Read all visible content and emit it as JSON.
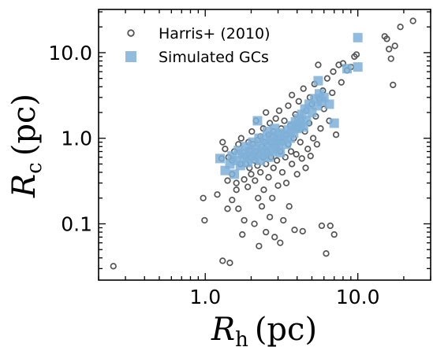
{
  "chart_data": {
    "type": "scatter",
    "x_scale": "log",
    "y_scale": "log",
    "xlim": [
      0.2,
      30
    ],
    "ylim": [
      0.022,
      32
    ],
    "xlabel": {
      "main": "R",
      "sub": "h",
      "unit": "(pc)"
    },
    "ylabel": {
      "main": "R",
      "sub": "c",
      "unit": "(pc)"
    },
    "x_ticks": [
      {
        "value": 1,
        "label": "1.0"
      },
      {
        "value": 10,
        "label": "10.0"
      }
    ],
    "y_ticks": [
      {
        "value": 0.1,
        "label": "0.1"
      },
      {
        "value": 1,
        "label": "1.0"
      },
      {
        "value": 10,
        "label": "10.0"
      }
    ],
    "legend": {
      "position": "top-left"
    },
    "series": [
      {
        "name": "Harris+ (2010)",
        "marker": "open-circle",
        "color": "#555555",
        "points": [
          [
            0.25,
            0.032
          ],
          [
            0.97,
            0.2
          ],
          [
            0.99,
            0.11
          ],
          [
            1.2,
            0.22
          ],
          [
            1.28,
            0.58
          ],
          [
            1.3,
            0.037
          ],
          [
            1.3,
            0.9
          ],
          [
            1.35,
            0.75
          ],
          [
            1.4,
            0.15
          ],
          [
            1.4,
            0.32
          ],
          [
            1.42,
            0.6
          ],
          [
            1.45,
            0.035
          ],
          [
            1.5,
            0.19
          ],
          [
            1.5,
            0.38
          ],
          [
            1.5,
            0.55
          ],
          [
            1.55,
            0.7
          ],
          [
            1.6,
            0.3
          ],
          [
            1.6,
            0.25
          ],
          [
            1.65,
            0.85
          ],
          [
            1.65,
            0.15
          ],
          [
            1.7,
            0.5
          ],
          [
            1.72,
            1.0
          ],
          [
            1.75,
            0.075
          ],
          [
            1.8,
            0.11
          ],
          [
            1.8,
            0.33
          ],
          [
            1.82,
            0.62
          ],
          [
            1.85,
            0.5
          ],
          [
            1.9,
            0.27
          ],
          [
            1.92,
            0.9
          ],
          [
            1.95,
            0.45
          ],
          [
            1.95,
            0.72
          ],
          [
            2.0,
            0.6
          ],
          [
            2.0,
            0.38
          ],
          [
            2.02,
            1.2
          ],
          [
            2.05,
            0.85
          ],
          [
            2.1,
            0.55
          ],
          [
            2.1,
            0.1
          ],
          [
            2.12,
            0.32
          ],
          [
            2.15,
            0.7
          ],
          [
            2.15,
            1.6
          ],
          [
            2.2,
            0.48
          ],
          [
            2.2,
            0.95
          ],
          [
            2.22,
            0.2
          ],
          [
            2.25,
            0.65
          ],
          [
            2.25,
            0.055
          ],
          [
            2.3,
            1.05
          ],
          [
            2.3,
            0.4
          ],
          [
            2.35,
            0.8
          ],
          [
            2.35,
            0.16
          ],
          [
            2.4,
            0.6
          ],
          [
            2.4,
            1.3
          ],
          [
            2.42,
            0.25
          ],
          [
            2.45,
            0.9
          ],
          [
            2.5,
            0.5
          ],
          [
            2.5,
            0.08
          ],
          [
            2.5,
            2.0
          ],
          [
            2.55,
            0.7
          ],
          [
            2.6,
            1.1
          ],
          [
            2.6,
            0.35
          ],
          [
            2.65,
            0.12
          ],
          [
            2.65,
            1.5
          ],
          [
            2.7,
            0.6
          ],
          [
            2.7,
            0.9
          ],
          [
            2.75,
            0.2
          ],
          [
            2.8,
            1.2
          ],
          [
            2.8,
            0.45
          ],
          [
            2.85,
            0.07
          ],
          [
            2.9,
            0.8
          ],
          [
            2.9,
            1.7
          ],
          [
            2.95,
            0.55
          ],
          [
            3.0,
            1.0
          ],
          [
            3.0,
            0.28
          ],
          [
            3.05,
            2.1
          ],
          [
            3.1,
            0.7
          ],
          [
            3.1,
            0.06
          ],
          [
            3.15,
            1.3
          ],
          [
            3.2,
            0.9
          ],
          [
            3.2,
            0.4
          ],
          [
            3.25,
            0.11
          ],
          [
            3.3,
            1.6
          ],
          [
            3.35,
            0.6
          ],
          [
            3.4,
            1.1
          ],
          [
            3.4,
            0.3
          ],
          [
            3.5,
            2.4
          ],
          [
            3.5,
            0.85
          ],
          [
            3.55,
            0.16
          ],
          [
            3.6,
            1.4
          ],
          [
            3.65,
            0.7
          ],
          [
            3.7,
            3.2
          ],
          [
            3.7,
            0.5
          ],
          [
            3.8,
            1.0
          ],
          [
            3.85,
            0.085
          ],
          [
            3.9,
            1.9
          ],
          [
            3.95,
            0.65
          ],
          [
            4.0,
            1.3
          ],
          [
            4.0,
            0.38
          ],
          [
            4.1,
            2.7
          ],
          [
            4.2,
            0.9
          ],
          [
            4.25,
            1.6
          ],
          [
            4.3,
            0.58
          ],
          [
            4.35,
            0.082
          ],
          [
            4.4,
            3.8
          ],
          [
            4.5,
            1.2
          ],
          [
            4.55,
            0.45
          ],
          [
            4.6,
            2.1
          ],
          [
            4.7,
            0.75
          ],
          [
            4.8,
            1.5
          ],
          [
            4.85,
            3.0
          ],
          [
            4.9,
            0.62
          ],
          [
            5.0,
            2.5
          ],
          [
            5.1,
            1.0
          ],
          [
            5.2,
            4.3
          ],
          [
            5.3,
            1.8
          ],
          [
            5.4,
            0.85
          ],
          [
            5.5,
            7.2
          ],
          [
            5.6,
            2.9
          ],
          [
            5.7,
            1.3
          ],
          [
            5.8,
            0.095
          ],
          [
            5.9,
            3.6
          ],
          [
            6.0,
            2.2
          ],
          [
            6.2,
            0.045
          ],
          [
            6.3,
            5.0
          ],
          [
            6.5,
            1.6
          ],
          [
            6.6,
            0.095
          ],
          [
            6.8,
            3.4
          ],
          [
            6.9,
            6.0
          ],
          [
            7.0,
            0.075
          ],
          [
            7.2,
            1.1
          ],
          [
            7.5,
            7.2
          ],
          [
            7.8,
            4.5
          ],
          [
            8.0,
            7.5
          ],
          [
            8.5,
            6.2
          ],
          [
            9.0,
            6.8
          ],
          [
            9.5,
            9.0
          ],
          [
            9.8,
            9.5
          ],
          [
            15.0,
            15.5
          ],
          [
            15.5,
            14.5
          ],
          [
            16.0,
            11.0
          ],
          [
            16.5,
            8.5
          ],
          [
            17.0,
            4.2
          ],
          [
            17.5,
            12.0
          ],
          [
            19.0,
            20.0
          ],
          [
            23.0,
            23.5
          ]
        ]
      },
      {
        "name": "Simulated GCs",
        "marker": "filled-square",
        "color": "#7fb0d8",
        "points": [
          [
            1.25,
            0.58
          ],
          [
            1.35,
            0.42
          ],
          [
            1.45,
            0.5
          ],
          [
            1.5,
            0.62
          ],
          [
            1.6,
            0.55
          ],
          [
            1.65,
            0.72
          ],
          [
            1.7,
            0.48
          ],
          [
            1.75,
            0.66
          ],
          [
            1.8,
            0.6
          ],
          [
            1.85,
            0.8
          ],
          [
            1.9,
            0.52
          ],
          [
            1.95,
            0.7
          ],
          [
            2.0,
            0.62
          ],
          [
            2.05,
            0.9
          ],
          [
            2.1,
            0.58
          ],
          [
            2.15,
            0.75
          ],
          [
            2.2,
            0.68
          ],
          [
            2.25,
            1.0
          ],
          [
            2.3,
            0.55
          ],
          [
            2.35,
            0.82
          ],
          [
            2.4,
            0.65
          ],
          [
            2.45,
            0.95
          ],
          [
            2.5,
            0.72
          ],
          [
            2.55,
            1.2
          ],
          [
            2.6,
            0.6
          ],
          [
            2.65,
            0.85
          ],
          [
            2.7,
            1.05
          ],
          [
            2.75,
            0.7
          ],
          [
            2.8,
            0.9
          ],
          [
            2.85,
            1.3
          ],
          [
            2.9,
            0.75
          ],
          [
            2.95,
            1.0
          ],
          [
            3.0,
            0.82
          ],
          [
            3.05,
            1.15
          ],
          [
            3.1,
            0.68
          ],
          [
            3.2,
            0.95
          ],
          [
            3.3,
            1.1
          ],
          [
            3.4,
            0.85
          ],
          [
            3.5,
            1.25
          ],
          [
            3.6,
            1.0
          ],
          [
            3.7,
            1.4
          ],
          [
            3.8,
            1.15
          ],
          [
            3.9,
            1.55
          ],
          [
            4.0,
            1.3
          ],
          [
            4.1,
            1.7
          ],
          [
            4.2,
            1.45
          ],
          [
            4.3,
            1.9
          ],
          [
            4.4,
            1.35
          ],
          [
            4.5,
            2.2
          ],
          [
            4.6,
            1.6
          ],
          [
            4.8,
            2.5
          ],
          [
            5.0,
            2.0
          ],
          [
            5.2,
            2.9
          ],
          [
            5.4,
            2.4
          ],
          [
            5.6,
            3.3
          ],
          [
            5.8,
            2.7
          ],
          [
            6.0,
            3.0
          ],
          [
            6.5,
            2.5
          ],
          [
            7.0,
            1.5
          ],
          [
            8.5,
            6.5
          ],
          [
            10.0,
            6.8
          ],
          [
            5.5,
            4.7
          ],
          [
            2.2,
            1.6
          ],
          [
            1.55,
            0.38
          ],
          [
            10.0,
            15.0
          ]
        ]
      }
    ]
  }
}
